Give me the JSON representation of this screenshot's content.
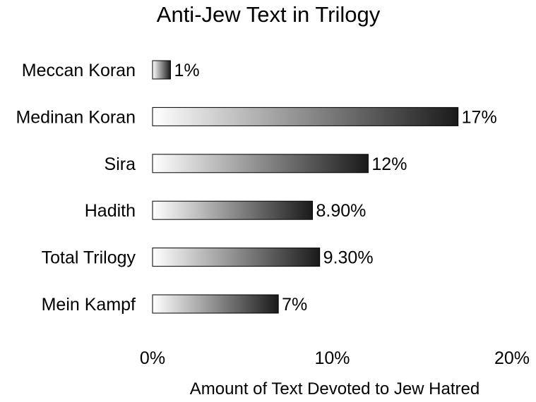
{
  "chart_data": {
    "type": "bar",
    "orientation": "horizontal",
    "title": "Anti-Jew Text in Trilogy",
    "xlabel": "Amount of Text Devoted to Jew Hatred",
    "ylabel": "",
    "categories": [
      "Meccan Koran",
      "Medinan Koran",
      "Sira",
      "Hadith",
      "Total Trilogy",
      "Mein Kampf"
    ],
    "values": [
      1,
      17,
      12,
      8.9,
      9.3,
      7
    ],
    "value_labels": [
      "1%",
      "17%",
      "12%",
      "8.90%",
      "9.30%",
      "7%"
    ],
    "xlim": [
      0,
      20
    ],
    "ticks": [
      0,
      10,
      20
    ],
    "tick_labels": [
      "0%",
      "10%",
      "20%"
    ],
    "grid": false,
    "legend": "none",
    "bar_fill": "gradient white-to-black",
    "colors": {
      "gradient_start": "#ffffff",
      "gradient_end": "#1a1a1a",
      "bar_outline": "#000000",
      "text": "#000000",
      "background": "#ffffff"
    }
  }
}
